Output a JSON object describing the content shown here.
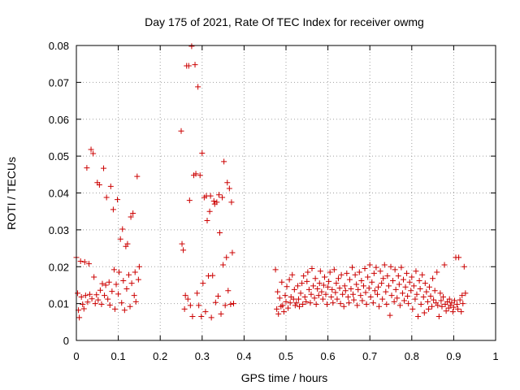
{
  "chart_data": {
    "type": "scatter",
    "title": "Day 175 of 2021, Rate Of TEC Index for receiver owmg",
    "xlabel": "GPS time / hours",
    "ylabel": "ROTI / TECUs",
    "xlim": [
      0,
      1
    ],
    "ylim": [
      0,
      0.08
    ],
    "x_ticks": [
      "0",
      "0.1",
      "0.2",
      "0.3",
      "0.4",
      "0.5",
      "0.6",
      "0.7",
      "0.8",
      "0.9",
      "1"
    ],
    "y_ticks": [
      "0",
      "0.01",
      "0.02",
      "0.03",
      "0.04",
      "0.05",
      "0.06",
      "0.07",
      "0.08"
    ],
    "grid": true,
    "marker": "+",
    "marker_color": "#cc0000",
    "series": [
      {
        "points": [
          [
            0.0,
            0.0225
          ],
          [
            0.003,
            0.0128
          ],
          [
            0.005,
            0.0082
          ],
          [
            0.007,
            0.0062
          ],
          [
            0.01,
            0.0215
          ],
          [
            0.012,
            0.0118
          ],
          [
            0.015,
            0.0098
          ],
          [
            0.018,
            0.0086
          ],
          [
            0.02,
            0.0213
          ],
          [
            0.022,
            0.0122
          ],
          [
            0.025,
            0.0468
          ],
          [
            0.027,
            0.0104
          ],
          [
            0.03,
            0.0208
          ],
          [
            0.032,
            0.0125
          ],
          [
            0.035,
            0.0518
          ],
          [
            0.037,
            0.0113
          ],
          [
            0.04,
            0.0507
          ],
          [
            0.042,
            0.0172
          ],
          [
            0.045,
            0.01
          ],
          [
            0.048,
            0.0124
          ],
          [
            0.05,
            0.0428
          ],
          [
            0.052,
            0.011
          ],
          [
            0.055,
            0.0422
          ],
          [
            0.057,
            0.0136
          ],
          [
            0.06,
            0.0098
          ],
          [
            0.062,
            0.0154
          ],
          [
            0.065,
            0.0467
          ],
          [
            0.067,
            0.0122
          ],
          [
            0.07,
            0.015
          ],
          [
            0.072,
            0.0388
          ],
          [
            0.075,
            0.0112
          ],
          [
            0.078,
            0.0158
          ],
          [
            0.08,
            0.0096
          ],
          [
            0.082,
            0.0418
          ],
          [
            0.085,
            0.0133
          ],
          [
            0.088,
            0.0355
          ],
          [
            0.09,
            0.0192
          ],
          [
            0.092,
            0.0085
          ],
          [
            0.095,
            0.0152
          ],
          [
            0.098,
            0.0382
          ],
          [
            0.1,
            0.0126
          ],
          [
            0.102,
            0.0185
          ],
          [
            0.105,
            0.0275
          ],
          [
            0.108,
            0.0102
          ],
          [
            0.11,
            0.0302
          ],
          [
            0.112,
            0.0162
          ],
          [
            0.115,
            0.0082
          ],
          [
            0.118,
            0.0255
          ],
          [
            0.12,
            0.014
          ],
          [
            0.122,
            0.0262
          ],
          [
            0.125,
            0.0178
          ],
          [
            0.128,
            0.0092
          ],
          [
            0.13,
            0.0335
          ],
          [
            0.132,
            0.0155
          ],
          [
            0.135,
            0.0345
          ],
          [
            0.138,
            0.0122
          ],
          [
            0.14,
            0.0185
          ],
          [
            0.142,
            0.0105
          ],
          [
            0.145,
            0.0445
          ],
          [
            0.148,
            0.0165
          ],
          [
            0.15,
            0.02
          ],
          [
            0.25,
            0.0568
          ],
          [
            0.252,
            0.0262
          ],
          [
            0.255,
            0.0245
          ],
          [
            0.258,
            0.0085
          ],
          [
            0.26,
            0.0122
          ],
          [
            0.263,
            0.0745
          ],
          [
            0.266,
            0.0112
          ],
          [
            0.268,
            0.0745
          ],
          [
            0.27,
            0.038
          ],
          [
            0.272,
            0.0095
          ],
          [
            0.275,
            0.0798
          ],
          [
            0.277,
            0.0065
          ],
          [
            0.28,
            0.0448
          ],
          [
            0.283,
            0.0748
          ],
          [
            0.285,
            0.0452
          ],
          [
            0.288,
            0.0128
          ],
          [
            0.29,
            0.0688
          ],
          [
            0.292,
            0.0095
          ],
          [
            0.295,
            0.0448
          ],
          [
            0.298,
            0.0065
          ],
          [
            0.3,
            0.0508
          ],
          [
            0.302,
            0.0155
          ],
          [
            0.305,
            0.0388
          ],
          [
            0.308,
            0.0078
          ],
          [
            0.31,
            0.0392
          ],
          [
            0.312,
            0.0325
          ],
          [
            0.315,
            0.0175
          ],
          [
            0.318,
            0.035
          ],
          [
            0.32,
            0.0392
          ],
          [
            0.322,
            0.0062
          ],
          [
            0.325,
            0.0176
          ],
          [
            0.328,
            0.0378
          ],
          [
            0.33,
            0.037
          ],
          [
            0.332,
            0.0103
          ],
          [
            0.335,
            0.0375
          ],
          [
            0.338,
            0.012
          ],
          [
            0.34,
            0.0395
          ],
          [
            0.342,
            0.0292
          ],
          [
            0.345,
            0.0072
          ],
          [
            0.348,
            0.0388
          ],
          [
            0.35,
            0.0205
          ],
          [
            0.352,
            0.0485
          ],
          [
            0.355,
            0.0095
          ],
          [
            0.358,
            0.0225
          ],
          [
            0.36,
            0.0428
          ],
          [
            0.362,
            0.0135
          ],
          [
            0.365,
            0.0412
          ],
          [
            0.368,
            0.0098
          ],
          [
            0.37,
            0.0375
          ],
          [
            0.372,
            0.0238
          ],
          [
            0.375,
            0.01
          ],
          [
            0.475,
            0.0192
          ],
          [
            0.478,
            0.0085
          ],
          [
            0.48,
            0.0132
          ],
          [
            0.482,
            0.0072
          ],
          [
            0.485,
            0.0115
          ],
          [
            0.488,
            0.0092
          ],
          [
            0.49,
            0.0158
          ],
          [
            0.492,
            0.0095
          ],
          [
            0.495,
            0.0078
          ],
          [
            0.498,
            0.0122
          ],
          [
            0.5,
            0.0105
          ],
          [
            0.502,
            0.0146
          ],
          [
            0.505,
            0.0088
          ],
          [
            0.508,
            0.0165
          ],
          [
            0.51,
            0.0102
          ],
          [
            0.512,
            0.0118
          ],
          [
            0.515,
            0.0178
          ],
          [
            0.518,
            0.0112
          ],
          [
            0.52,
            0.0138
          ],
          [
            0.522,
            0.0095
          ],
          [
            0.525,
            0.0102
          ],
          [
            0.528,
            0.0148
          ],
          [
            0.53,
            0.0112
          ],
          [
            0.532,
            0.0092
          ],
          [
            0.535,
            0.0128
          ],
          [
            0.538,
            0.0155
          ],
          [
            0.54,
            0.0098
          ],
          [
            0.542,
            0.0175
          ],
          [
            0.545,
            0.0118
          ],
          [
            0.548,
            0.0105
          ],
          [
            0.55,
            0.016
          ],
          [
            0.552,
            0.0185
          ],
          [
            0.555,
            0.0138
          ],
          [
            0.558,
            0.0102
          ],
          [
            0.56,
            0.0125
          ],
          [
            0.562,
            0.0195
          ],
          [
            0.565,
            0.0148
          ],
          [
            0.568,
            0.0115
          ],
          [
            0.57,
            0.0168
          ],
          [
            0.572,
            0.0098
          ],
          [
            0.575,
            0.014
          ],
          [
            0.578,
            0.0122
          ],
          [
            0.58,
            0.0155
          ],
          [
            0.582,
            0.0188
          ],
          [
            0.585,
            0.0132
          ],
          [
            0.588,
            0.0112
          ],
          [
            0.59,
            0.015
          ],
          [
            0.592,
            0.0172
          ],
          [
            0.595,
            0.0125
          ],
          [
            0.598,
            0.0098
          ],
          [
            0.6,
            0.0145
          ],
          [
            0.602,
            0.016
          ],
          [
            0.605,
            0.0185
          ],
          [
            0.608,
            0.0118
          ],
          [
            0.61,
            0.0138
          ],
          [
            0.612,
            0.0102
          ],
          [
            0.615,
            0.0192
          ],
          [
            0.618,
            0.013
          ],
          [
            0.62,
            0.0155
          ],
          [
            0.622,
            0.0112
          ],
          [
            0.625,
            0.0168
          ],
          [
            0.628,
            0.0142
          ],
          [
            0.63,
            0.01
          ],
          [
            0.632,
            0.0178
          ],
          [
            0.635,
            0.0125
          ],
          [
            0.638,
            0.0092
          ],
          [
            0.64,
            0.0148
          ],
          [
            0.642,
            0.0135
          ],
          [
            0.645,
            0.0182
          ],
          [
            0.648,
            0.0118
          ],
          [
            0.65,
            0.0102
          ],
          [
            0.652,
            0.0165
          ],
          [
            0.655,
            0.014
          ],
          [
            0.658,
            0.0198
          ],
          [
            0.66,
            0.0125
          ],
          [
            0.662,
            0.011
          ],
          [
            0.665,
            0.0178
          ],
          [
            0.668,
            0.0152
          ],
          [
            0.67,
            0.0095
          ],
          [
            0.672,
            0.0138
          ],
          [
            0.675,
            0.0185
          ],
          [
            0.678,
            0.0122
          ],
          [
            0.68,
            0.0162
          ],
          [
            0.682,
            0.0108
          ],
          [
            0.685,
            0.0148
          ],
          [
            0.688,
            0.0195
          ],
          [
            0.69,
            0.013
          ],
          [
            0.692,
            0.0098
          ],
          [
            0.695,
            0.0172
          ],
          [
            0.698,
            0.0142
          ],
          [
            0.7,
            0.0205
          ],
          [
            0.702,
            0.0118
          ],
          [
            0.705,
            0.0158
          ],
          [
            0.708,
            0.0102
          ],
          [
            0.71,
            0.0182
          ],
          [
            0.712,
            0.0135
          ],
          [
            0.715,
            0.0198
          ],
          [
            0.718,
            0.0125
          ],
          [
            0.72,
            0.0145
          ],
          [
            0.722,
            0.0092
          ],
          [
            0.725,
            0.0188
          ],
          [
            0.728,
            0.0155
          ],
          [
            0.73,
            0.0112
          ],
          [
            0.732,
            0.0168
          ],
          [
            0.735,
            0.0205
          ],
          [
            0.738,
            0.0132
          ],
          [
            0.74,
            0.0098
          ],
          [
            0.742,
            0.0175
          ],
          [
            0.745,
            0.0148
          ],
          [
            0.748,
            0.0068
          ],
          [
            0.75,
            0.02
          ],
          [
            0.752,
            0.0122
          ],
          [
            0.755,
            0.0162
          ],
          [
            0.758,
            0.0105
          ],
          [
            0.76,
            0.0192
          ],
          [
            0.762,
            0.0138
          ],
          [
            0.765,
            0.0115
          ],
          [
            0.768,
            0.0175
          ],
          [
            0.77,
            0.0152
          ],
          [
            0.772,
            0.0095
          ],
          [
            0.775,
            0.0198
          ],
          [
            0.778,
            0.0128
          ],
          [
            0.78,
            0.0165
          ],
          [
            0.782,
            0.0108
          ],
          [
            0.785,
            0.0145
          ],
          [
            0.788,
            0.0182
          ],
          [
            0.79,
            0.012
          ],
          [
            0.792,
            0.01
          ],
          [
            0.795,
            0.0158
          ],
          [
            0.798,
            0.0135
          ],
          [
            0.8,
            0.0172
          ],
          [
            0.802,
            0.0085
          ],
          [
            0.805,
            0.0148
          ],
          [
            0.808,
            0.0112
          ],
          [
            0.81,
            0.0188
          ],
          [
            0.812,
            0.0125
          ],
          [
            0.815,
            0.0065
          ],
          [
            0.818,
            0.0162
          ],
          [
            0.82,
            0.014
          ],
          [
            0.822,
            0.0098
          ],
          [
            0.825,
            0.0178
          ],
          [
            0.828,
            0.0118
          ],
          [
            0.83,
            0.0075
          ],
          [
            0.832,
            0.0155
          ],
          [
            0.835,
            0.0132
          ],
          [
            0.838,
            0.0105
          ],
          [
            0.84,
            0.0085
          ],
          [
            0.842,
            0.0145
          ],
          [
            0.845,
            0.012
          ],
          [
            0.848,
            0.0092
          ],
          [
            0.85,
            0.0168
          ],
          [
            0.852,
            0.011
          ],
          [
            0.855,
            0.0135
          ],
          [
            0.858,
            0.0102
          ],
          [
            0.86,
            0.0185
          ],
          [
            0.862,
            0.0095
          ],
          [
            0.865,
            0.0065
          ],
          [
            0.868,
            0.0128
          ],
          [
            0.87,
            0.0108
          ],
          [
            0.872,
            0.0092
          ],
          [
            0.875,
            0.0118
          ],
          [
            0.878,
            0.0205
          ],
          [
            0.88,
            0.0098
          ],
          [
            0.882,
            0.008
          ],
          [
            0.885,
            0.0105
          ],
          [
            0.888,
            0.0088
          ],
          [
            0.89,
            0.0112
          ],
          [
            0.892,
            0.0095
          ],
          [
            0.895,
            0.0102
          ],
          [
            0.898,
            0.0078
          ],
          [
            0.9,
            0.009
          ],
          [
            0.902,
            0.0108
          ],
          [
            0.905,
            0.0225
          ],
          [
            0.908,
            0.0098
          ],
          [
            0.91,
            0.0085
          ],
          [
            0.912,
            0.0225
          ],
          [
            0.915,
            0.011
          ],
          [
            0.918,
            0.0078
          ],
          [
            0.92,
            0.0122
          ],
          [
            0.922,
            0.01
          ],
          [
            0.925,
            0.02
          ],
          [
            0.928,
            0.0128
          ]
        ]
      }
    ]
  }
}
